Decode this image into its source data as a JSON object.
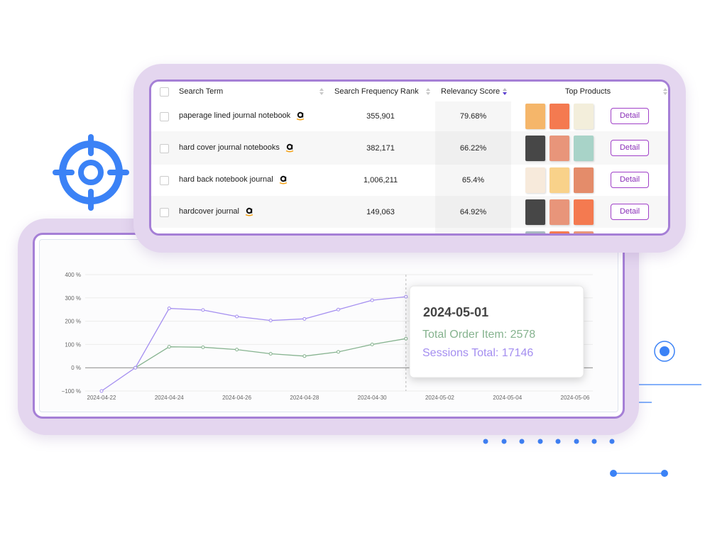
{
  "table": {
    "columns": [
      "Search Term",
      "Search Frequency Rank",
      "Relevancy Score",
      "Top Products"
    ],
    "rows": [
      [
        "paperage lined journal notebook",
        "355,901",
        "79.68%",
        "Detail"
      ],
      [
        "hard cover journal notebooks",
        "382,171",
        "66.22%",
        "Detail"
      ],
      [
        "hard back notebook journal",
        "1,006,211",
        "65.4%",
        "Detail"
      ],
      [
        "hardcover journal",
        "149,063",
        "64.92%",
        "Detail"
      ]
    ]
  },
  "chart_data": {
    "type": "line",
    "categories": [
      "2024-04-22",
      null,
      "2024-04-24",
      null,
      "2024-04-26",
      null,
      "2024-04-28",
      null,
      "2024-04-30",
      null,
      "2024-05-02",
      null,
      "2024-05-04",
      null,
      "2024-05-06"
    ],
    "series": [
      {
        "color": "#86b38f",
        "values": [
          null,
          0,
          90,
          88,
          78,
          60,
          50,
          68,
          100,
          125,
          null,
          null,
          null,
          null,
          null
        ]
      },
      {
        "color": "#a48ef0",
        "values": [
          -100,
          0,
          255,
          248,
          220,
          203,
          210,
          250,
          290,
          305,
          null,
          null,
          null,
          null,
          null
        ]
      }
    ],
    "ylim": [
      -100,
      400
    ],
    "yticks": [
      {
        "value": -100,
        "label": "−100 %"
      },
      {
        "value": 0,
        "label": "0 %"
      },
      {
        "value": 100,
        "label": "100 %"
      },
      {
        "value": 200,
        "label": "200 %"
      },
      {
        "value": 300,
        "label": "300 %"
      },
      {
        "value": 400,
        "label": "400 %"
      }
    ],
    "grid": true,
    "tooltip": {
      "title": "2024-05-01",
      "lines": [
        "Total Order Item: 2578",
        "Sessions Total: 17146"
      ]
    }
  }
}
